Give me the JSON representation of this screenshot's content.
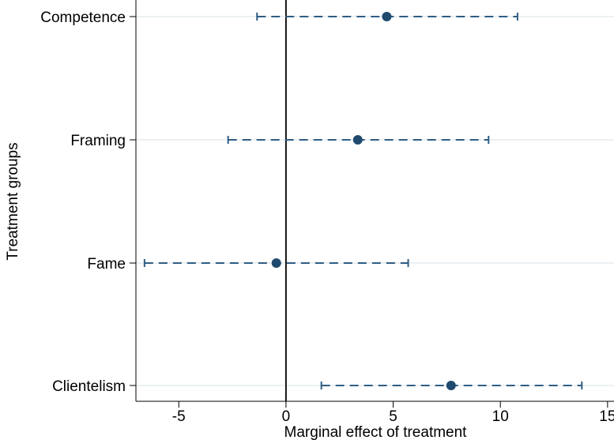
{
  "chart_data": {
    "type": "scatter",
    "title": "",
    "xlabel": "Marginal effect of treatment",
    "ylabel": "Treatment groups",
    "xlim": [
      -7,
      15.3
    ],
    "x_ticks": [
      "-5",
      "0",
      "5",
      "10",
      "15"
    ],
    "categories": [
      "Competence",
      "Framing",
      "Fame",
      "Clientelism"
    ],
    "points": [
      {
        "category": "Competence",
        "estimate": 4.7,
        "ci_low": -1.35,
        "ci_high": 10.8
      },
      {
        "category": "Framing",
        "estimate": 3.35,
        "ci_low": -2.7,
        "ci_high": 9.45
      },
      {
        "category": "Fame",
        "estimate": -0.45,
        "ci_low": -6.6,
        "ci_high": 5.7
      },
      {
        "category": "Clientelism",
        "estimate": 7.7,
        "ci_low": 1.65,
        "ci_high": 13.8
      }
    ],
    "reference_line_x": 0,
    "grid": "horizontal",
    "marker_color": "#1f4a6e",
    "ci_color": "#2f5d84",
    "grid_color": "#e6ebef"
  }
}
